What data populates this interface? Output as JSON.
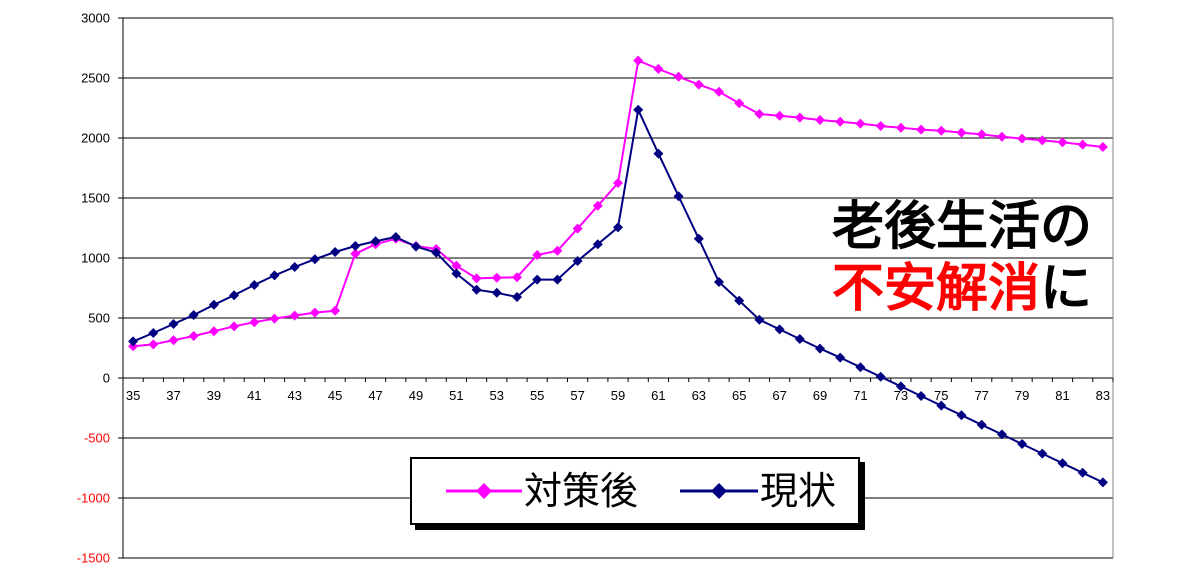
{
  "chart_data": {
    "type": "line",
    "x": [
      35,
      36,
      37,
      38,
      39,
      40,
      41,
      42,
      43,
      44,
      45,
      46,
      47,
      48,
      49,
      50,
      51,
      52,
      53,
      54,
      55,
      56,
      57,
      58,
      59,
      60,
      61,
      62,
      63,
      64,
      65,
      66,
      67,
      68,
      69,
      70,
      71,
      72,
      73,
      74,
      75,
      76,
      77,
      78,
      79,
      80,
      81,
      82,
      83
    ],
    "x_tick_labels": [
      "35",
      "37",
      "39",
      "41",
      "43",
      "45",
      "47",
      "49",
      "51",
      "53",
      "55",
      "57",
      "59",
      "61",
      "63",
      "65",
      "67",
      "69",
      "71",
      "73",
      "75",
      "77",
      "79",
      "81",
      "83"
    ],
    "y_ticks": [
      3000,
      2500,
      2000,
      1500,
      1000,
      500,
      0,
      -500,
      -1000,
      -1500
    ],
    "y_tick_labels": [
      "3000",
      "2500",
      "2000",
      "1500",
      "1000",
      "500",
      "0",
      "-500",
      "-1000",
      "-1500"
    ],
    "negative_tick_color": "#ff0000",
    "ylim": [
      -1500,
      3000
    ],
    "x_axis_crosses_y": 0,
    "grid": true,
    "legend_position": "bottom-center",
    "series": [
      {
        "name": "対策後",
        "color": "#ff00ff",
        "marker": "diamond",
        "values": [
          265,
          280,
          315,
          350,
          390,
          430,
          465,
          495,
          520,
          545,
          560,
          1035,
          1115,
          1160,
          1100,
          1075,
          935,
          830,
          835,
          840,
          1025,
          1060,
          1245,
          1435,
          1625,
          2645,
          2575,
          2510,
          2445,
          2385,
          2290,
          2200,
          2185,
          2170,
          2150,
          2135,
          2120,
          2100,
          2085,
          2070,
          2060,
          2045,
          2030,
          2010,
          1995,
          1980,
          1965,
          1945,
          1925
        ]
      },
      {
        "name": "現状",
        "color": "#000080",
        "marker": "diamond",
        "values": [
          305,
          375,
          450,
          525,
          610,
          690,
          775,
          855,
          925,
          990,
          1050,
          1100,
          1140,
          1175,
          1095,
          1045,
          870,
          735,
          710,
          675,
          820,
          820,
          975,
          1115,
          1255,
          2235,
          1870,
          1515,
          1160,
          800,
          645,
          485,
          405,
          325,
          245,
          170,
          90,
          10,
          -70,
          -150,
          -230,
          -310,
          -390,
          -470,
          -550,
          -630,
          -710,
          -790,
          -870
        ]
      }
    ],
    "annotation": {
      "line1": "老後生活の",
      "line2_emphasis": "不安解消",
      "line2_tail": "に",
      "emphasis_color": "#ff0000"
    }
  }
}
